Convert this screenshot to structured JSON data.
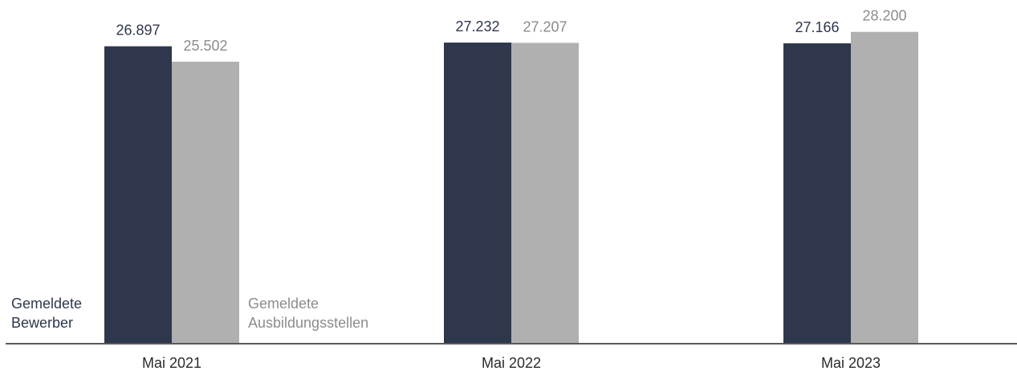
{
  "chart_data": {
    "type": "bar",
    "categories": [
      "Mai 2021",
      "Mai 2022",
      "Mai 2023"
    ],
    "series": [
      {
        "name": "Gemeldete Bewerber",
        "name_lines": [
          "Gemeldete",
          "Bewerber"
        ],
        "values": [
          26897,
          27232,
          27166
        ],
        "labels": [
          "26.897",
          "27.232",
          "27.166"
        ],
        "color": "#2f374d"
      },
      {
        "name": "Gemeldete Ausbildungsstellen",
        "name_lines": [
          "Gemeldete",
          "Ausbildungsstellen"
        ],
        "values": [
          25502,
          27207,
          28200
        ],
        "labels": [
          "25.502",
          "27.207",
          "28.200"
        ],
        "color": "#b0b0b0"
      }
    ],
    "title": "",
    "xlabel": "",
    "ylabel": "",
    "ylim": [
      0,
      30000
    ],
    "grid": false,
    "legend": "inline-left-of-first-group",
    "colors": {
      "axis": "#595959",
      "label_dark": "#2f374d",
      "label_light": "#8c8c8c",
      "category_text": "#2b2b2b"
    }
  }
}
